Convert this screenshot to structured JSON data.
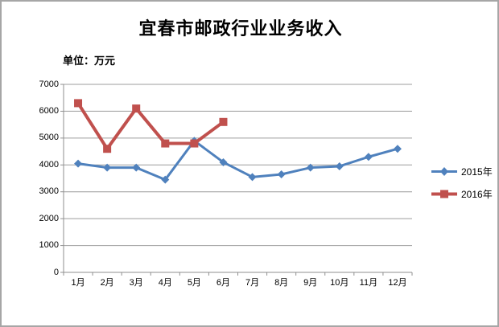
{
  "chart_data": {
    "type": "line",
    "title": "宜春市邮政行业业务收入",
    "unit_label": "单位：万元",
    "categories": [
      "1月",
      "2月",
      "3月",
      "4月",
      "5月",
      "6月",
      "7月",
      "8月",
      "9月",
      "10月",
      "11月",
      "12月"
    ],
    "series": [
      {
        "name": "2015年",
        "color": "#4F81BD",
        "marker": "diamond",
        "values": [
          4050,
          3900,
          3900,
          3450,
          4900,
          4100,
          3550,
          3650,
          3900,
          3950,
          4300,
          4600
        ]
      },
      {
        "name": "2016年",
        "color": "#C0504D",
        "marker": "square",
        "values": [
          6300,
          4600,
          6100,
          4800,
          4800,
          5600
        ]
      }
    ],
    "ylim": [
      0,
      7000
    ],
    "ytick_step": 1000,
    "yticks": [
      "0",
      "1000",
      "2000",
      "3000",
      "4000",
      "5000",
      "6000",
      "7000"
    ],
    "grid": true,
    "legend_position": "right",
    "gridline_color": "#9C9C9C",
    "axis_color": "#8F8F8F",
    "background": "#FFFFFF",
    "border_color": "#A6A6A6"
  }
}
